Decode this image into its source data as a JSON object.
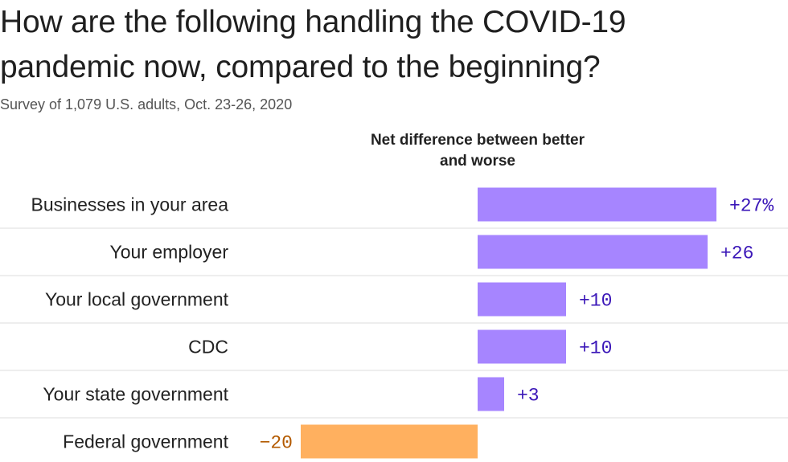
{
  "header": {
    "title": "How are the following handling the COVID-19 pandemic now, compared to the beginning?",
    "subtitle": "Survey of 1,079 U.S. adults, Oct. 23-26, 2020",
    "column_header": "Net difference between better and worse"
  },
  "colors": {
    "positive": "#a685ff",
    "negative": "#ffb05f",
    "positive_text": "#3b17b8",
    "negative_text": "#b35a00",
    "divider": "#dddddd"
  },
  "chart_data": {
    "type": "bar",
    "orientation": "horizontal",
    "title": "How are the following handling the COVID-19 pandemic now, compared to the beginning?",
    "subtitle": "Survey of 1,079 U.S. adults, Oct. 23-26, 2020",
    "xlabel": "Net difference between better and worse",
    "ylabel": "",
    "categories": [
      "Businesses in your area",
      "Your employer",
      "Your local government",
      "CDC",
      "Your state government",
      "Federal government"
    ],
    "values": [
      27,
      26,
      10,
      10,
      3,
      -20
    ],
    "value_labels": [
      "+27%",
      "+26",
      "+10",
      "+10",
      "+3",
      "−20"
    ],
    "xlim": [
      -20,
      27
    ],
    "grid": false,
    "legend": "none"
  }
}
